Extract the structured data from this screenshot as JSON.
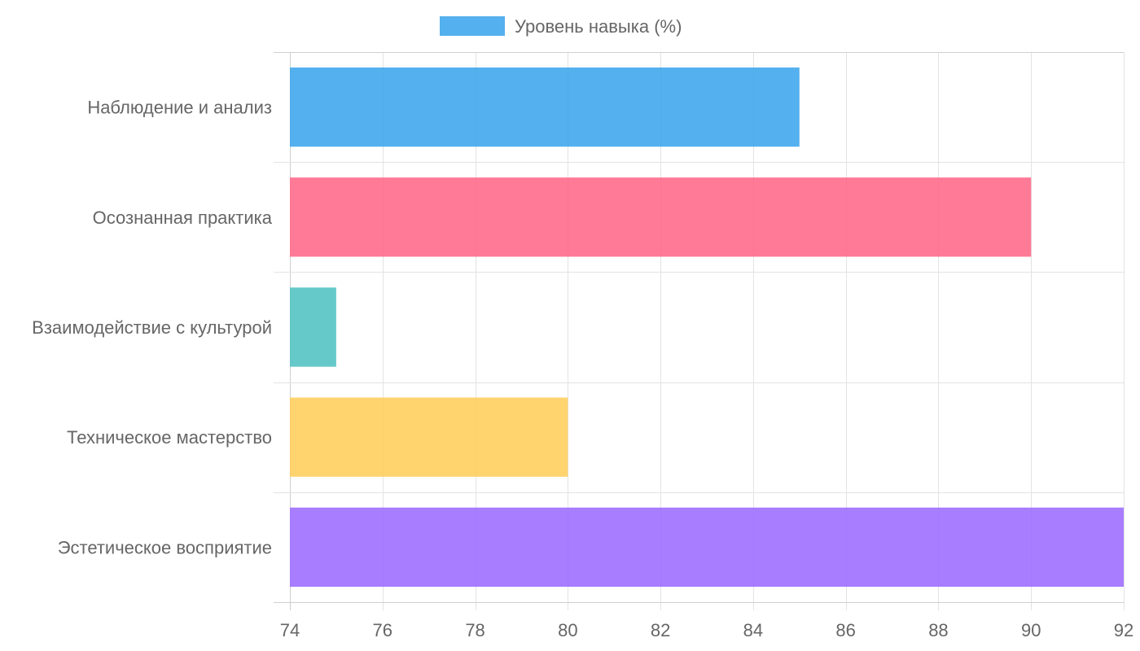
{
  "chart_data": {
    "type": "bar",
    "orientation": "horizontal",
    "title": "",
    "xlabel": "",
    "ylabel": "",
    "legend": {
      "position": "top-center",
      "entries": [
        {
          "label": "Уровень навыка (%)",
          "color": "#36a2eb"
        }
      ]
    },
    "categories": [
      "Наблюдение и анализ",
      "Осознанная практика",
      "Взаимодействие с культурой",
      "Техническое мастерство",
      "Эстетическое восприятие"
    ],
    "series": [
      {
        "name": "Уровень навыка (%)",
        "values": [
          85,
          90,
          75,
          80,
          92
        ]
      }
    ],
    "bar_colors": [
      "#36a2eb",
      "#ff6384",
      "#4bc0c0",
      "#ffcd56",
      "#9966ff"
    ],
    "xlim": [
      74,
      92
    ],
    "xticks": [
      74,
      76,
      78,
      80,
      82,
      84,
      86,
      88,
      90,
      92
    ],
    "grid": true,
    "grid_color": "#e0e0e0",
    "text_color": "#666666"
  }
}
